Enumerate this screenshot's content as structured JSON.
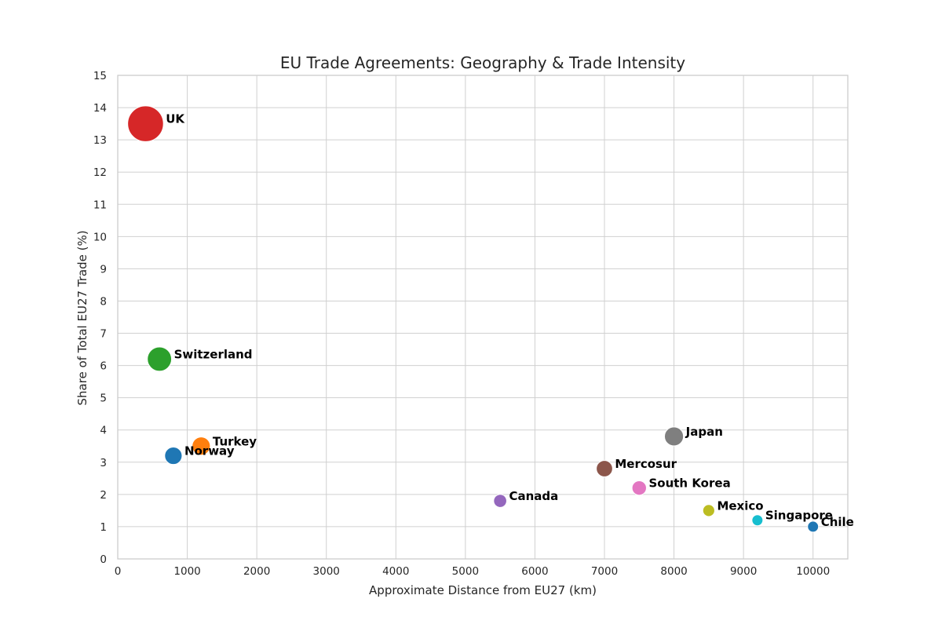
{
  "chart_data": {
    "type": "scatter",
    "title": "EU Trade Agreements: Geography & Trade Intensity",
    "xlabel": "Approximate Distance from EU27 (km)",
    "ylabel": "Share of Total EU27 Trade (%)",
    "xlim": [
      0,
      10500
    ],
    "ylim": [
      0,
      15
    ],
    "xticks": [
      0,
      1000,
      2000,
      3000,
      4000,
      5000,
      6000,
      7000,
      8000,
      9000,
      10000
    ],
    "yticks": [
      0,
      1,
      2,
      3,
      4,
      5,
      6,
      7,
      8,
      9,
      10,
      11,
      12,
      13,
      14,
      15
    ],
    "grid": true,
    "legend": "none",
    "points": [
      {
        "label": "UK",
        "x": 400,
        "y": 13.5,
        "color": "#d62728"
      },
      {
        "label": "Switzerland",
        "x": 600,
        "y": 6.2,
        "color": "#2ca02c"
      },
      {
        "label": "Norway",
        "x": 800,
        "y": 3.2,
        "color": "#1f77b4"
      },
      {
        "label": "Turkey",
        "x": 1200,
        "y": 3.5,
        "color": "#ff7f0e"
      },
      {
        "label": "Canada",
        "x": 5500,
        "y": 1.8,
        "color": "#9467bd"
      },
      {
        "label": "Mercosur",
        "x": 7000,
        "y": 2.8,
        "color": "#8c564b"
      },
      {
        "label": "South Korea",
        "x": 7500,
        "y": 2.2,
        "color": "#e377c2"
      },
      {
        "label": "Japan",
        "x": 8000,
        "y": 3.8,
        "color": "#7f7f7f"
      },
      {
        "label": "Mexico",
        "x": 8500,
        "y": 1.5,
        "color": "#bcbd22"
      },
      {
        "label": "Singapore",
        "x": 9200,
        "y": 1.2,
        "color": "#17becf"
      },
      {
        "label": "Chile",
        "x": 10000,
        "y": 1.0,
        "color": "#1f77b4"
      }
    ]
  }
}
